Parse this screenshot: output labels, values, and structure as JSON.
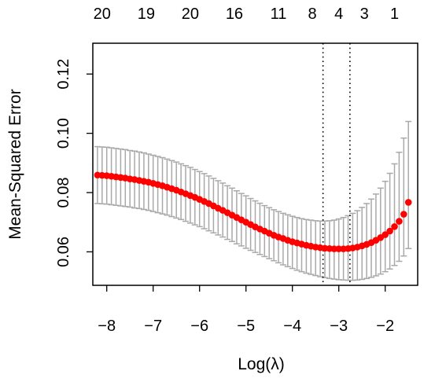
{
  "chart_data": {
    "type": "scatter",
    "xlabel": "Log(λ)",
    "ylabel": "Mean-Squared Error",
    "xlim": [
      -8.3,
      -1.3
    ],
    "ylim": [
      0.0487,
      0.1304
    ],
    "x_ticks": [
      {
        "value": -8,
        "label": "−8"
      },
      {
        "value": -7,
        "label": "−7"
      },
      {
        "value": -6,
        "label": "−6"
      },
      {
        "value": -5,
        "label": "−5"
      },
      {
        "value": -4,
        "label": "−4"
      },
      {
        "value": -3,
        "label": "−3"
      },
      {
        "value": -2,
        "label": "−2"
      }
    ],
    "y_ticks": [
      {
        "value": 0.06,
        "label": "0.06"
      },
      {
        "value": 0.08,
        "label": "0.08"
      },
      {
        "value": 0.1,
        "label": "0.10"
      },
      {
        "value": 0.12,
        "label": "0.12"
      }
    ],
    "top_axis": [
      {
        "value": -8.1,
        "label": "20"
      },
      {
        "value": -7.15,
        "label": "19"
      },
      {
        "value": -6.2,
        "label": "20"
      },
      {
        "value": -5.25,
        "label": "16"
      },
      {
        "value": -4.3,
        "label": "11"
      },
      {
        "value": -3.57,
        "label": "8"
      },
      {
        "value": -3.0,
        "label": "4"
      },
      {
        "value": -2.45,
        "label": "3"
      },
      {
        "value": -1.8,
        "label": "1"
      }
    ],
    "vlines": [
      -3.34,
      -2.76
    ],
    "point_color": "#ff0000",
    "errorbar_color": "#a9a9a9",
    "series": [
      {
        "x": [
          -8.2,
          -8.1,
          -8.0,
          -7.9,
          -7.8,
          -7.7,
          -7.6,
          -7.5,
          -7.4,
          -7.3,
          -7.2,
          -7.1,
          -7.0,
          -6.9,
          -6.8,
          -6.7,
          -6.6,
          -6.5,
          -6.4,
          -6.3,
          -6.2,
          -6.1,
          -6.0,
          -5.9,
          -5.8,
          -5.7,
          -5.6,
          -5.5,
          -5.4,
          -5.3,
          -5.2,
          -5.1,
          -5.0,
          -4.9,
          -4.8,
          -4.7,
          -4.6,
          -4.5,
          -4.4,
          -4.3,
          -4.2,
          -4.1,
          -4.0,
          -3.9,
          -3.8,
          -3.7,
          -3.6,
          -3.5,
          -3.4,
          -3.3,
          -3.2,
          -3.1,
          -3.0,
          -2.9,
          -2.8,
          -2.7,
          -2.6,
          -2.5,
          -2.4,
          -2.3,
          -2.2,
          -2.1,
          -2.0,
          -1.9,
          -1.8,
          -1.7,
          -1.6,
          -1.5
        ],
        "y": [
          0.0859,
          0.0858,
          0.0857,
          0.0855,
          0.0853,
          0.0851,
          0.0849,
          0.0846,
          0.0844,
          0.0841,
          0.0838,
          0.0835,
          0.0831,
          0.0827,
          0.0823,
          0.0818,
          0.0813,
          0.0808,
          0.0802,
          0.0796,
          0.079,
          0.0784,
          0.0777,
          0.077,
          0.0763,
          0.0755,
          0.0747,
          0.074,
          0.0732,
          0.0724,
          0.0716,
          0.0708,
          0.07,
          0.0692,
          0.0684,
          0.0677,
          0.067,
          0.0663,
          0.0656,
          0.065,
          0.0645,
          0.0639,
          0.0634,
          0.063,
          0.0626,
          0.0622,
          0.0619,
          0.0616,
          0.0614,
          0.0612,
          0.0611,
          0.061,
          0.061,
          0.061,
          0.0611,
          0.0613,
          0.0616,
          0.062,
          0.0625,
          0.0631,
          0.0639,
          0.0648,
          0.0658,
          0.067,
          0.0685,
          0.0703,
          0.0727,
          0.0767
        ],
        "lower": [
          0.0763,
          0.0762,
          0.0761,
          0.0759,
          0.0757,
          0.0755,
          0.0753,
          0.0751,
          0.0748,
          0.0746,
          0.0743,
          0.074,
          0.0736,
          0.0732,
          0.0728,
          0.0724,
          0.0719,
          0.0714,
          0.0709,
          0.0703,
          0.0697,
          0.0691,
          0.0685,
          0.0678,
          0.0671,
          0.0664,
          0.0657,
          0.065,
          0.0642,
          0.0635,
          0.0627,
          0.062,
          0.0612,
          0.0605,
          0.0598,
          0.0591,
          0.0584,
          0.0577,
          0.057,
          0.0563,
          0.0556,
          0.055,
          0.0544,
          0.0538,
          0.0533,
          0.0528,
          0.0524,
          0.052,
          0.0516,
          0.0513,
          0.051,
          0.0508,
          0.0506,
          0.0505,
          0.0504,
          0.0504,
          0.0505,
          0.0507,
          0.051,
          0.0514,
          0.0519,
          0.0525,
          0.0533,
          0.0542,
          0.0554,
          0.0568,
          0.0586,
          0.0611
        ],
        "upper": [
          0.0955,
          0.0954,
          0.0953,
          0.0951,
          0.0949,
          0.0947,
          0.0945,
          0.0942,
          0.094,
          0.0937,
          0.0934,
          0.093,
          0.0926,
          0.0922,
          0.0918,
          0.0913,
          0.0908,
          0.0903,
          0.0897,
          0.0891,
          0.0885,
          0.0878,
          0.0871,
          0.0864,
          0.0856,
          0.0848,
          0.084,
          0.0832,
          0.0823,
          0.0815,
          0.0806,
          0.0797,
          0.0789,
          0.078,
          0.0772,
          0.0764,
          0.0756,
          0.0749,
          0.0742,
          0.0736,
          0.073,
          0.0725,
          0.072,
          0.0716,
          0.0712,
          0.0709,
          0.0707,
          0.0705,
          0.0704,
          0.0704,
          0.0705,
          0.0707,
          0.0711,
          0.0716,
          0.0722,
          0.073,
          0.0739,
          0.075,
          0.0763,
          0.0778,
          0.0795,
          0.0815,
          0.0838,
          0.0865,
          0.0897,
          0.0936,
          0.0984,
          0.104
        ]
      }
    ]
  }
}
